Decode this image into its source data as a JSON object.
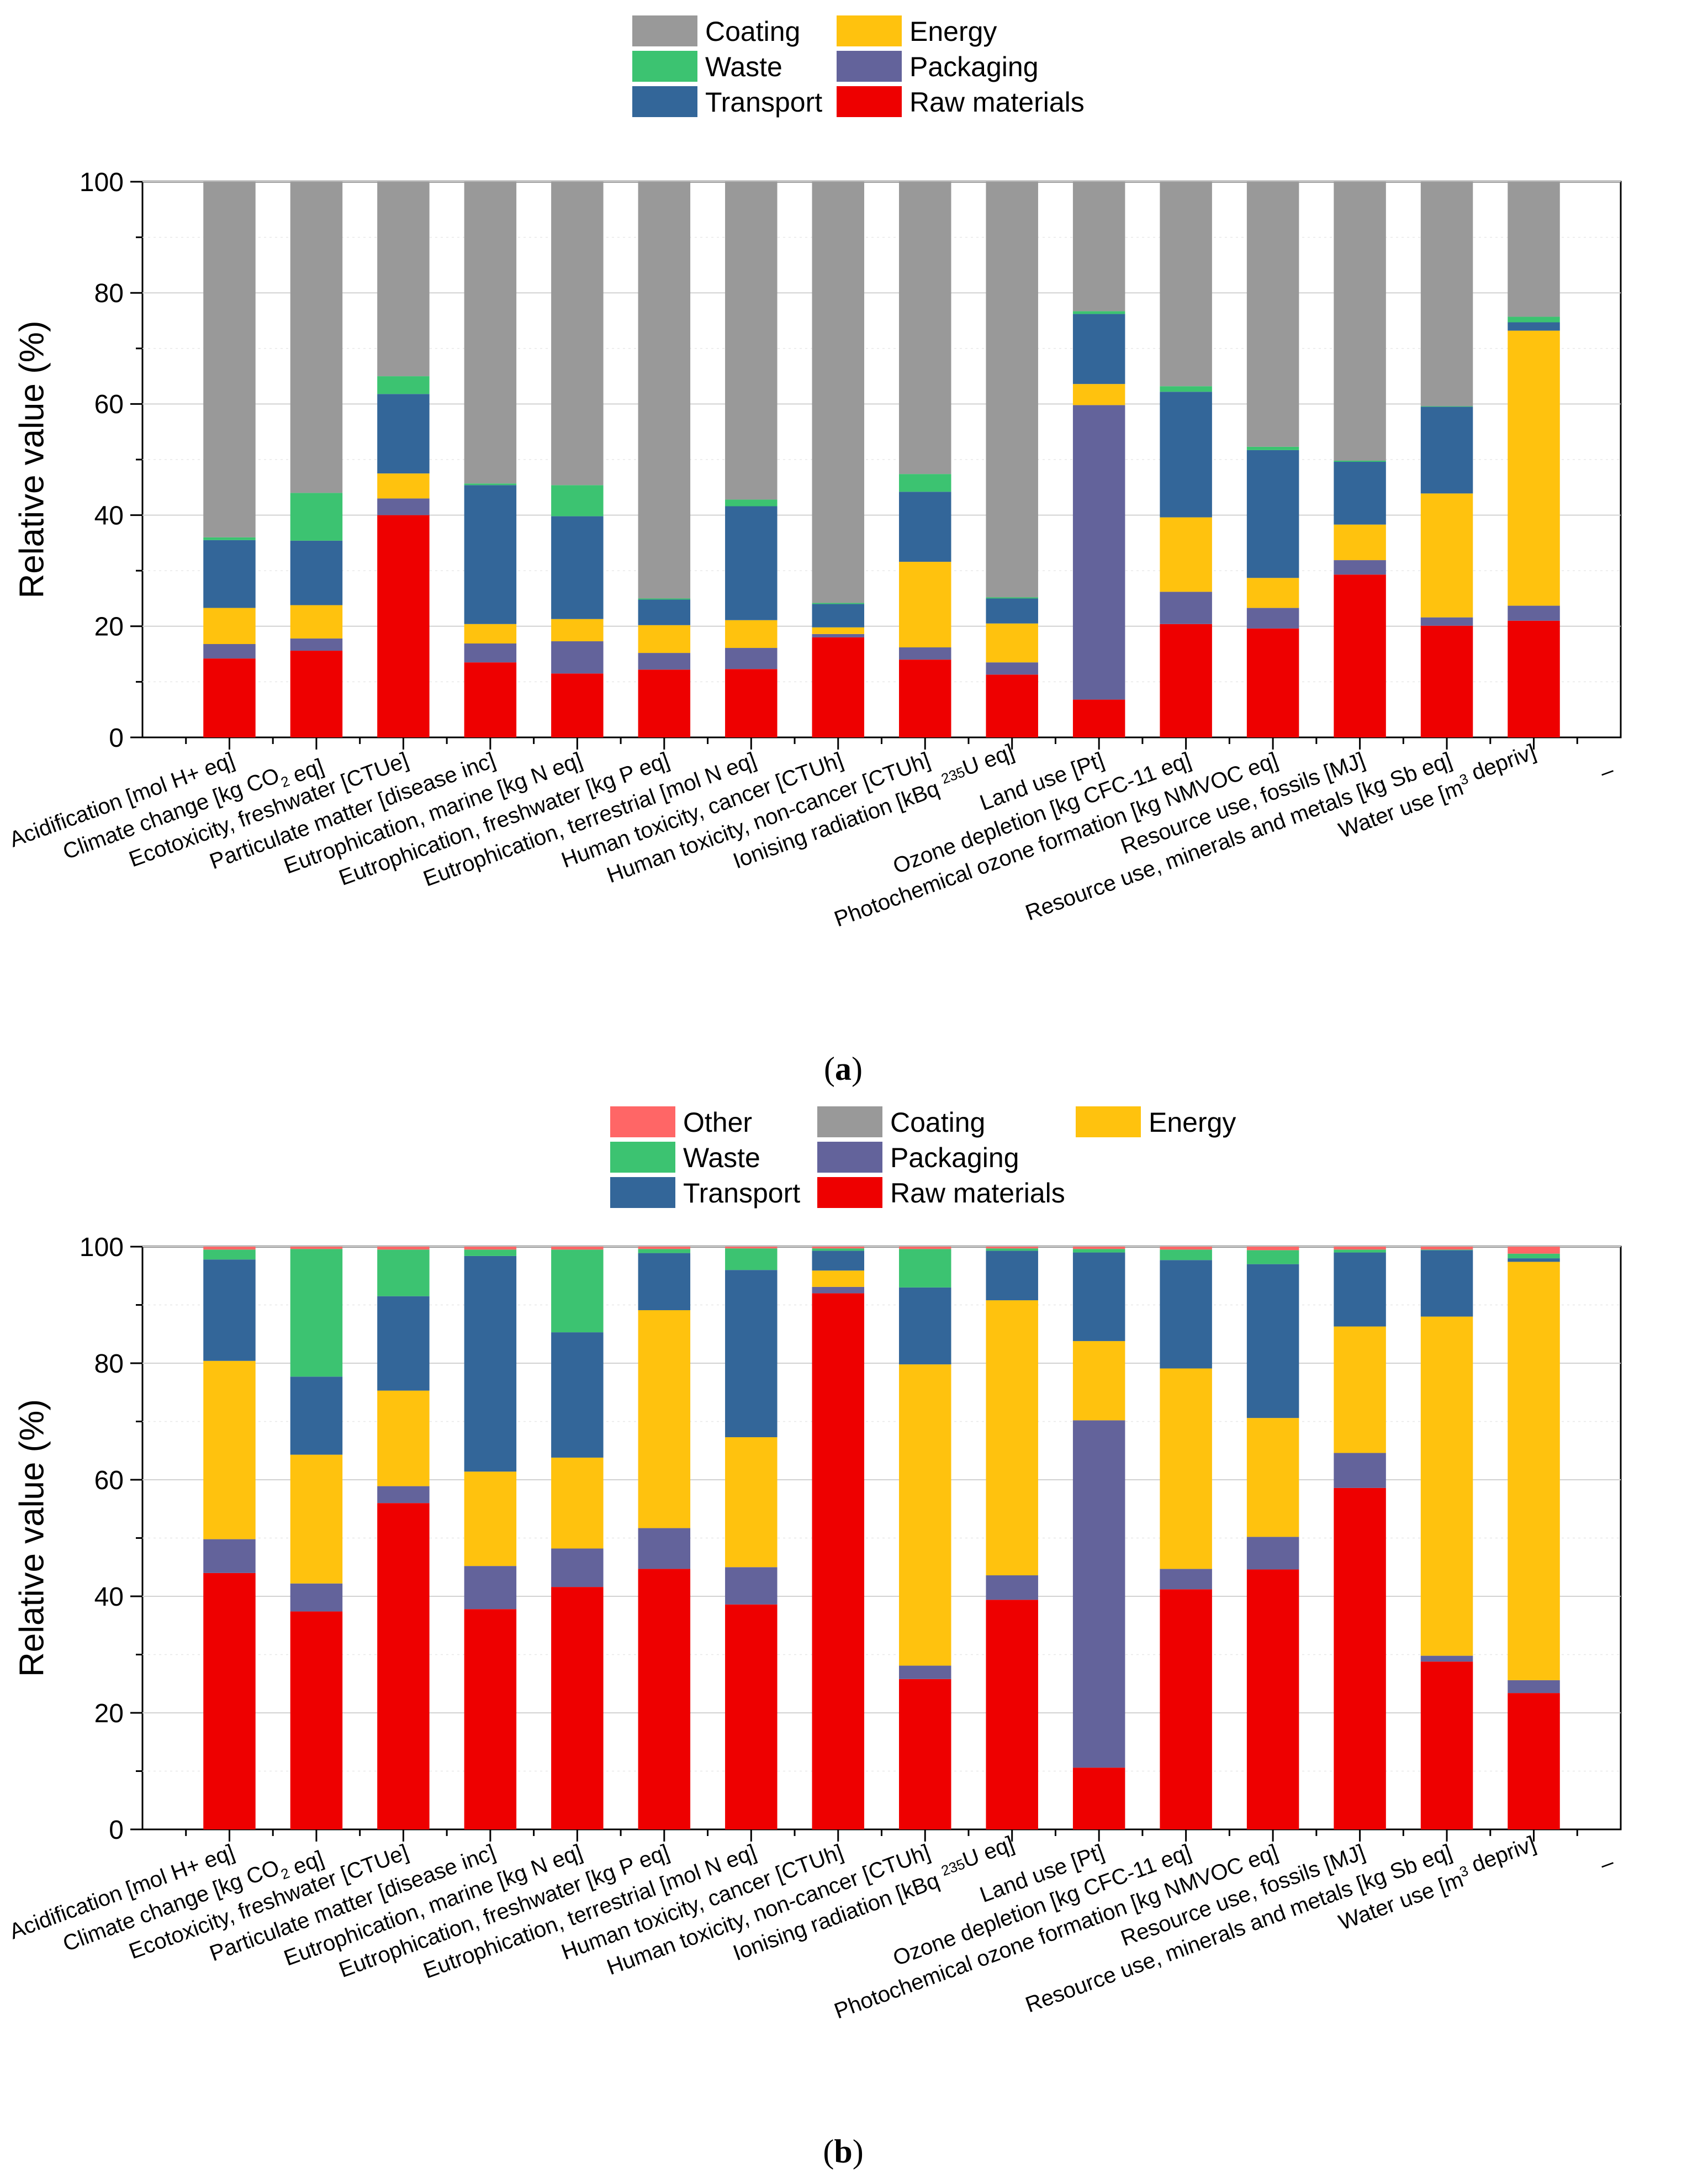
{
  "series_colors": {
    "Raw materials": "#ee0000",
    "Packaging": "#63639b",
    "Energy": "#ffc20e",
    "Transport": "#336699",
    "Waste": "#3cc371",
    "Coating": "#999999",
    "Other": "#ff6666"
  },
  "chart_data": [
    {
      "type": "bar",
      "stacked": true,
      "panel": "(a)",
      "caption_letter": "a",
      "ylabel": "Relative value (%)",
      "ylim": [
        0,
        100
      ],
      "yticks": [
        "0",
        "20",
        "40",
        "60",
        "80",
        "100"
      ],
      "extra_x_tick": "–",
      "legend": [
        [
          "Coating",
          "Energy"
        ],
        [
          "Waste",
          "Packaging"
        ],
        [
          "Transport",
          "Raw materials"
        ]
      ],
      "categories": [
        [
          "Acidification [mol H+ eq]"
        ],
        [
          "Climate change [kg CO",
          {
            "sub": "2"
          },
          " eq]"
        ],
        [
          "Ecotoxicity, freshwater [CTUe]"
        ],
        [
          "Particulate matter [disease inc]"
        ],
        [
          "Eutrophication, marine [kg N eq]"
        ],
        [
          "Eutrophication, freshwater [kg P eq]"
        ],
        [
          "Eutrophication, terrestrial [mol N eq]"
        ],
        [
          "Human toxicity, cancer [CTUh]"
        ],
        [
          "Human toxicity, non-cancer [CTUh]"
        ],
        [
          "Ionising radiation [kBq ",
          {
            "sup": "235"
          },
          "U eq]"
        ],
        [
          "Land use [Pt]"
        ],
        [
          "Ozone depletion [kg CFC-11 eq]"
        ],
        [
          "Photochemical ozone formation [kg NMVOC eq]"
        ],
        [
          "Resource use, fossils [MJ]"
        ],
        [
          "Resource use, minerals and metals [kg Sb eq]"
        ],
        [
          "Water use [m",
          {
            "sup": "3"
          },
          " depriv]"
        ]
      ],
      "series": [
        {
          "name": "Raw materials",
          "values": [
            14.2,
            15.6,
            40.0,
            13.5,
            11.5,
            12.2,
            12.3,
            18.0,
            14.0,
            11.3,
            6.8,
            20.4,
            19.6,
            29.3,
            20.1,
            21.0
          ]
        },
        {
          "name": "Packaging",
          "values": [
            2.6,
            2.2,
            3.0,
            3.4,
            5.8,
            3.0,
            3.8,
            0.6,
            2.2,
            2.2,
            53.0,
            5.8,
            3.7,
            2.6,
            1.5,
            2.7
          ]
        },
        {
          "name": "Energy",
          "values": [
            6.5,
            6.0,
            4.5,
            3.5,
            4.0,
            5.0,
            5.0,
            1.2,
            15.4,
            7.0,
            3.8,
            13.4,
            5.4,
            6.4,
            22.3,
            49.5
          ]
        },
        {
          "name": "Transport",
          "values": [
            12.2,
            11.6,
            14.3,
            25.0,
            18.5,
            4.6,
            20.5,
            4.2,
            12.6,
            4.5,
            12.6,
            22.6,
            23.0,
            11.3,
            15.6,
            1.5
          ]
        },
        {
          "name": "Waste",
          "values": [
            0.5,
            8.6,
            3.2,
            0.3,
            5.6,
            0.2,
            1.2,
            0.2,
            3.2,
            0.2,
            0.5,
            1.0,
            0.6,
            0.2,
            0.1,
            1.0
          ]
        },
        {
          "name": "Coating",
          "values": [
            64.0,
            56.0,
            35.0,
            54.3,
            54.6,
            75.0,
            57.2,
            75.8,
            52.6,
            74.8,
            23.3,
            36.8,
            47.7,
            50.2,
            40.4,
            24.3
          ]
        }
      ]
    },
    {
      "type": "bar",
      "stacked": true,
      "panel": "(b)",
      "caption_letter": "b",
      "ylabel": "Relative value (%)",
      "ylim": [
        0,
        100
      ],
      "yticks": [
        "0",
        "20",
        "40",
        "60",
        "80",
        "100"
      ],
      "extra_x_tick": "–",
      "legend": [
        [
          "Other",
          "Coating",
          "Energy"
        ],
        [
          "Waste",
          "Packaging"
        ],
        [
          "Transport",
          "Raw materials"
        ]
      ],
      "categories": [
        [
          "Acidification [mol H+ eq]"
        ],
        [
          "Climate change [kg CO",
          {
            "sub": "2"
          },
          " eq]"
        ],
        [
          "Ecotoxicity, freshwater [CTUe]"
        ],
        [
          "Particulate matter [disease inc]"
        ],
        [
          "Eutrophication, marine [kg N eq]"
        ],
        [
          "Eutrophication, freshwater [kg P eq]"
        ],
        [
          "Eutrophication, terrestrial [mol N eq]"
        ],
        [
          "Human toxicity, cancer [CTUh]"
        ],
        [
          "Human toxicity, non-cancer [CTUh]"
        ],
        [
          "Ionising radiation [kBq ",
          {
            "sup": "235"
          },
          "U eq]"
        ],
        [
          "Land use [Pt]"
        ],
        [
          "Ozone depletion [kg CFC-11 eq]"
        ],
        [
          "Photochemical ozone formation [kg NMVOC eq]"
        ],
        [
          "Resource use, fossils [MJ]"
        ],
        [
          "Resource use, minerals and metals [kg Sb eq]"
        ],
        [
          "Water use [m",
          {
            "sup": "3"
          },
          " depriv]"
        ]
      ],
      "series": [
        {
          "name": "Raw materials",
          "values": [
            44.0,
            37.4,
            56.0,
            37.8,
            41.6,
            44.7,
            38.6,
            92.0,
            25.8,
            39.4,
            10.6,
            41.2,
            44.6,
            58.6,
            28.8,
            23.4
          ]
        },
        {
          "name": "Packaging",
          "values": [
            5.8,
            4.8,
            2.9,
            7.4,
            6.6,
            7.0,
            6.4,
            1.1,
            2.3,
            4.2,
            59.6,
            3.5,
            5.6,
            6.0,
            1.0,
            2.2
          ]
        },
        {
          "name": "Energy",
          "values": [
            30.6,
            22.1,
            16.4,
            16.2,
            15.6,
            37.4,
            22.3,
            2.8,
            51.7,
            47.2,
            13.6,
            34.4,
            20.4,
            21.7,
            58.2,
            71.8
          ]
        },
        {
          "name": "Transport",
          "values": [
            17.4,
            13.4,
            16.2,
            37.0,
            21.5,
            9.8,
            28.7,
            3.4,
            13.2,
            8.5,
            15.2,
            18.6,
            26.4,
            12.7,
            11.4,
            0.6
          ]
        },
        {
          "name": "Waste",
          "values": [
            1.7,
            21.9,
            8.0,
            1.1,
            14.2,
            0.7,
            3.7,
            0.4,
            6.6,
            0.4,
            0.6,
            1.8,
            2.4,
            0.5,
            0.1,
            0.8
          ]
        },
        {
          "name": "Coating",
          "values": [
            0,
            0,
            0,
            0,
            0,
            0,
            0,
            0,
            0,
            0,
            0,
            0,
            0,
            0,
            0,
            0
          ]
        },
        {
          "name": "Other",
          "values": [
            0.5,
            0.4,
            0.5,
            0.5,
            0.5,
            0.4,
            0.3,
            0.3,
            0.4,
            0.3,
            0.4,
            0.5,
            0.6,
            0.5,
            0.5,
            1.2
          ]
        }
      ]
    }
  ]
}
